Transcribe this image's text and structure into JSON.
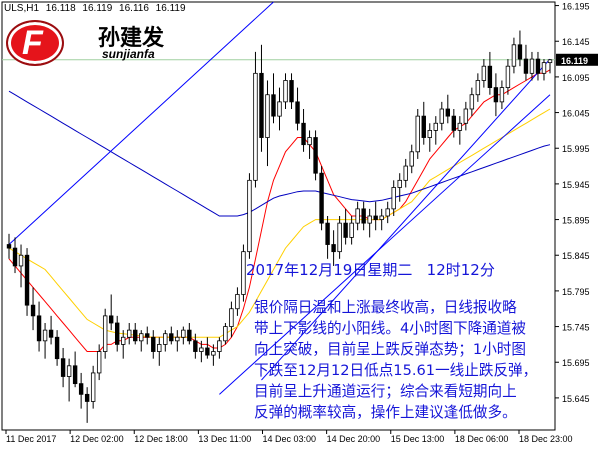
{
  "header": {
    "symbol_tf": "ULS,H1",
    "open": "16.118",
    "high": "16.119",
    "low": "16.116",
    "close": "16.119"
  },
  "logo": {
    "name_cn": "孙建发",
    "name_en": "sunjianfa",
    "mark": "F"
  },
  "annotation": {
    "date_line": "2017年12月19日星期二   12时12分",
    "lines": [
      "银价隔日温和上涨最终收高，日线报收略",
      "带上下影线的小阳线。4小时图下降通道被",
      "向上突破，目前呈上跌反弹态势；1小时图",
      "下跌至12月12日低点15.61一线止跌反弹，",
      "目前呈上升通道运行；综合来看短期向上",
      "反弹的概率较高，操作上建议逢低做多。"
    ]
  },
  "chart_data": {
    "type": "candlestick",
    "symbol": "ULS",
    "timeframe": "H1",
    "current_price": 16.119,
    "price_axis": {
      "min": 15.6,
      "max": 16.2,
      "ticks": [
        "16.195",
        "16.145",
        "16.095",
        "16.045",
        "15.995",
        "15.945",
        "15.895",
        "15.845",
        "15.795",
        "15.745",
        "15.695",
        "15.645"
      ],
      "current_label": "16.119"
    },
    "time_axis": {
      "ticks": [
        "11 Dec 2017",
        "12 Dec 02:00",
        "12 Dec 18:00",
        "13 Dec 11:00",
        "14 Dec 03:00",
        "14 Dec 20:00",
        "15 Dec 13:00",
        "18 Dec 06:00",
        "18 Dec 23:00"
      ]
    },
    "candles": [
      [
        15.86,
        15.875,
        15.84,
        15.855
      ],
      [
        15.855,
        15.87,
        15.82,
        15.83
      ],
      [
        15.83,
        15.86,
        15.8,
        15.845
      ],
      [
        15.845,
        15.855,
        15.76,
        15.775
      ],
      [
        15.775,
        15.8,
        15.74,
        15.76
      ],
      [
        15.76,
        15.78,
        15.71,
        15.725
      ],
      [
        15.725,
        15.75,
        15.7,
        15.74
      ],
      [
        15.74,
        15.76,
        15.72,
        15.73
      ],
      [
        15.73,
        15.74,
        15.69,
        15.7
      ],
      [
        15.7,
        15.715,
        15.66,
        15.675
      ],
      [
        15.675,
        15.7,
        15.64,
        15.69
      ],
      [
        15.69,
        15.71,
        15.66,
        15.665
      ],
      [
        15.665,
        15.68,
        15.63,
        15.65
      ],
      [
        15.65,
        15.66,
        15.61,
        15.64
      ],
      [
        15.64,
        15.69,
        15.63,
        15.68
      ],
      [
        15.68,
        15.72,
        15.67,
        15.71
      ],
      [
        15.71,
        15.77,
        15.7,
        15.76
      ],
      [
        15.76,
        15.79,
        15.74,
        15.75
      ],
      [
        15.75,
        15.76,
        15.71,
        15.72
      ],
      [
        15.72,
        15.74,
        15.7,
        15.73
      ],
      [
        15.73,
        15.75,
        15.72,
        15.74
      ],
      [
        15.74,
        15.75,
        15.72,
        15.725
      ],
      [
        15.725,
        15.74,
        15.71,
        15.735
      ],
      [
        15.735,
        15.745,
        15.72,
        15.73
      ],
      [
        15.73,
        15.74,
        15.7,
        15.71
      ],
      [
        15.71,
        15.73,
        15.69,
        15.72
      ],
      [
        15.72,
        15.74,
        15.71,
        15.735
      ],
      [
        15.735,
        15.745,
        15.72,
        15.725
      ],
      [
        15.725,
        15.74,
        15.71,
        15.73
      ],
      [
        15.73,
        15.745,
        15.72,
        15.74
      ],
      [
        15.74,
        15.75,
        15.72,
        15.725
      ],
      [
        15.725,
        15.735,
        15.7,
        15.71
      ],
      [
        15.71,
        15.725,
        15.695,
        15.715
      ],
      [
        15.715,
        15.73,
        15.7,
        15.705
      ],
      [
        15.705,
        15.72,
        15.69,
        15.71
      ],
      [
        15.71,
        15.73,
        15.7,
        15.725
      ],
      [
        15.725,
        15.75,
        15.72,
        15.745
      ],
      [
        15.745,
        15.78,
        15.73,
        15.77
      ],
      [
        15.77,
        15.8,
        15.76,
        15.79
      ],
      [
        15.79,
        15.86,
        15.78,
        15.85
      ],
      [
        15.85,
        15.96,
        15.84,
        15.95
      ],
      [
        15.95,
        16.13,
        15.94,
        16.1
      ],
      [
        16.1,
        16.14,
        15.99,
        16.01
      ],
      [
        16.01,
        16.09,
        15.97,
        16.07
      ],
      [
        16.07,
        16.1,
        16.03,
        16.04
      ],
      [
        16.04,
        16.08,
        16.02,
        16.06
      ],
      [
        16.06,
        16.1,
        16.05,
        16.09
      ],
      [
        16.09,
        16.1,
        16.05,
        16.06
      ],
      [
        16.06,
        16.08,
        16.02,
        16.03
      ],
      [
        16.03,
        16.05,
        15.99,
        16.0
      ],
      [
        16.0,
        16.02,
        15.98,
        16.01
      ],
      [
        16.01,
        16.02,
        15.95,
        15.96
      ],
      [
        15.96,
        15.97,
        15.88,
        15.89
      ],
      [
        15.89,
        15.9,
        15.84,
        15.86
      ],
      [
        15.86,
        15.88,
        15.83,
        15.85
      ],
      [
        15.85,
        15.9,
        15.84,
        15.89
      ],
      [
        15.89,
        15.91,
        15.86,
        15.87
      ],
      [
        15.87,
        15.9,
        15.86,
        15.89
      ],
      [
        15.89,
        15.92,
        15.88,
        15.91
      ],
      [
        15.91,
        15.92,
        15.88,
        15.89
      ],
      [
        15.89,
        15.91,
        15.87,
        15.9
      ],
      [
        15.9,
        15.92,
        15.88,
        15.895
      ],
      [
        15.895,
        15.91,
        15.88,
        15.9
      ],
      [
        15.9,
        15.92,
        15.89,
        15.91
      ],
      [
        15.91,
        15.95,
        15.9,
        15.94
      ],
      [
        15.94,
        15.96,
        15.92,
        15.95
      ],
      [
        15.95,
        15.98,
        15.94,
        15.97
      ],
      [
        15.97,
        16.0,
        15.96,
        15.99
      ],
      [
        15.99,
        16.05,
        15.98,
        16.04
      ],
      [
        16.04,
        16.06,
        16.0,
        16.01
      ],
      [
        16.01,
        16.03,
        15.99,
        16.02
      ],
      [
        16.02,
        16.04,
        16.0,
        16.03
      ],
      [
        16.03,
        16.06,
        16.02,
        16.05
      ],
      [
        16.05,
        16.07,
        16.03,
        16.04
      ],
      [
        16.04,
        16.05,
        16.01,
        16.02
      ],
      [
        16.02,
        16.04,
        16.0,
        16.03
      ],
      [
        16.03,
        16.06,
        16.02,
        16.05
      ],
      [
        16.05,
        16.08,
        16.04,
        16.07
      ],
      [
        16.07,
        16.1,
        16.06,
        16.09
      ],
      [
        16.09,
        16.12,
        16.08,
        16.11
      ],
      [
        16.11,
        16.13,
        16.07,
        16.08
      ],
      [
        16.08,
        16.1,
        16.04,
        16.06
      ],
      [
        16.06,
        16.09,
        16.05,
        16.08
      ],
      [
        16.08,
        16.12,
        16.07,
        16.11
      ],
      [
        16.11,
        16.15,
        16.1,
        16.14
      ],
      [
        16.14,
        16.16,
        16.11,
        16.12
      ],
      [
        16.12,
        16.14,
        16.09,
        16.1
      ],
      [
        16.1,
        16.13,
        16.09,
        16.12
      ],
      [
        16.12,
        16.13,
        16.09,
        16.1
      ],
      [
        16.1,
        16.12,
        16.09,
        16.115
      ],
      [
        16.115,
        16.12,
        16.1,
        16.119
      ]
    ],
    "indicators": [
      {
        "color": "#ff0000",
        "values": [
          15.84,
          15.83,
          15.82,
          15.81,
          15.8,
          15.79,
          15.78,
          15.77,
          15.76,
          15.75,
          15.74,
          15.73,
          15.72,
          15.71,
          15.71,
          15.71,
          15.72,
          15.72,
          15.725,
          15.725,
          15.73,
          15.73,
          15.73,
          15.73,
          15.73,
          15.73,
          15.73,
          15.73,
          15.73,
          15.73,
          15.73,
          15.725,
          15.72,
          15.72,
          15.715,
          15.715,
          15.72,
          15.73,
          15.745,
          15.77,
          15.8,
          15.84,
          15.88,
          15.92,
          15.95,
          15.97,
          15.99,
          16.0,
          16.01,
          16.01,
          16.0,
          15.99,
          15.97,
          15.95,
          15.93,
          15.92,
          15.91,
          15.9,
          15.9,
          15.9,
          15.895,
          15.895,
          15.895,
          15.9,
          15.905,
          15.91,
          15.92,
          15.935,
          15.95,
          15.965,
          15.98,
          15.99,
          16.0,
          16.01,
          16.02,
          16.025,
          16.03,
          16.04,
          16.05,
          16.06,
          16.065,
          16.07,
          16.07,
          16.075,
          16.08,
          16.085,
          16.09,
          16.095,
          16.1,
          16.1,
          16.105
        ]
      },
      {
        "color": "#ffd000",
        "values": [
          15.855,
          15.85,
          15.845,
          15.84,
          15.835,
          15.83,
          15.825,
          15.815,
          15.805,
          15.795,
          15.785,
          15.775,
          15.765,
          15.755,
          15.75,
          15.745,
          15.74,
          15.738,
          15.736,
          15.735,
          15.734,
          15.733,
          15.732,
          15.731,
          15.73,
          15.73,
          15.73,
          15.73,
          15.73,
          15.73,
          15.73,
          15.73,
          15.73,
          15.73,
          15.73,
          15.73,
          15.735,
          15.74,
          15.745,
          15.755,
          15.765,
          15.78,
          15.795,
          15.81,
          15.825,
          15.84,
          15.855,
          15.865,
          15.875,
          15.885,
          15.89,
          15.895,
          15.895,
          15.895,
          15.895,
          15.895,
          15.895,
          15.895,
          15.895,
          15.895,
          15.895,
          15.895,
          15.895,
          15.9,
          15.905,
          15.91,
          15.915,
          15.92,
          15.93,
          15.94,
          15.95,
          15.955,
          15.96,
          15.965,
          15.97,
          15.975,
          15.98,
          15.985,
          15.99,
          15.995,
          16.0,
          16.005,
          16.01,
          16.015,
          16.02,
          16.025,
          16.03,
          16.035,
          16.04,
          16.045,
          16.05
        ]
      },
      {
        "color": "#0000c0",
        "values": [
          16.075,
          16.07,
          16.065,
          16.06,
          16.055,
          16.05,
          16.045,
          16.04,
          16.035,
          16.03,
          16.025,
          16.02,
          16.015,
          16.01,
          16.005,
          16.0,
          15.995,
          15.99,
          15.985,
          15.98,
          15.975,
          15.97,
          15.965,
          15.96,
          15.955,
          15.95,
          15.945,
          15.94,
          15.935,
          15.93,
          15.925,
          15.92,
          15.915,
          15.91,
          15.905,
          15.9,
          15.9,
          15.9,
          15.9,
          15.902,
          15.905,
          15.91,
          15.915,
          15.92,
          15.925,
          15.928,
          15.93,
          15.932,
          15.934,
          15.935,
          15.935,
          15.935,
          15.933,
          15.931,
          15.929,
          15.927,
          15.925,
          15.923,
          15.922,
          15.921,
          15.92,
          15.921,
          15.922,
          15.924,
          15.926,
          15.928,
          15.93,
          15.932,
          15.935,
          15.938,
          15.941,
          15.944,
          15.947,
          15.95,
          15.953,
          15.956,
          15.959,
          15.962,
          15.965,
          15.968,
          15.971,
          15.974,
          15.977,
          15.98,
          15.983,
          15.986,
          15.989,
          15.992,
          15.995,
          15.998,
          16.0
        ]
      }
    ],
    "trend_lines": [
      {
        "color": "#0000ff",
        "from": [
          0,
          15.86
        ],
        "to": [
          44,
          16.2
        ]
      },
      {
        "color": "#0000ff",
        "from": [
          35,
          15.65
        ],
        "to": [
          90,
          16.07
        ]
      },
      {
        "color": "#0000ff",
        "from": [
          42,
          15.67
        ],
        "to": [
          90,
          16.12
        ]
      }
    ],
    "horizontal_line": {
      "color": "#a0d0a0",
      "value": 16.119
    }
  }
}
